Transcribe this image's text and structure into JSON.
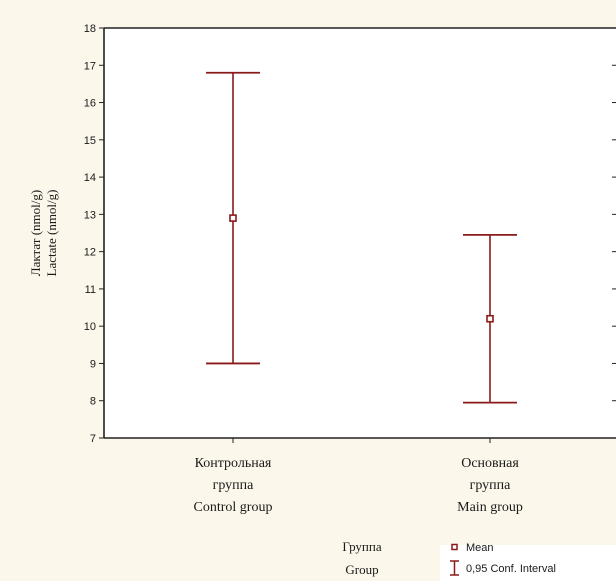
{
  "chart_data": {
    "type": "errorbar",
    "ylabel": [
      "Лактат (nmol/g)",
      "Lactate (nmol/g)"
    ],
    "ylim": [
      7,
      18
    ],
    "yticks": [
      7,
      8,
      9,
      10,
      11,
      12,
      13,
      14,
      15,
      16,
      17,
      18
    ],
    "categories": [
      [
        "Контрольная",
        "группа",
        "Control group"
      ],
      [
        "Основная",
        "группа",
        "Main group"
      ]
    ],
    "points": [
      {
        "mean": 12.9,
        "ci_low": 9.0,
        "ci_high": 16.8
      },
      {
        "mean": 10.2,
        "ci_low": 7.95,
        "ci_high": 12.45
      }
    ],
    "xlabel": [
      "Группа",
      "Group"
    ],
    "legend": {
      "mean_label": "Mean",
      "ci_label": "0,95 Conf. Interval",
      "position": "bottom-right"
    },
    "marker_color": "#8b1a1a",
    "grid": false
  }
}
